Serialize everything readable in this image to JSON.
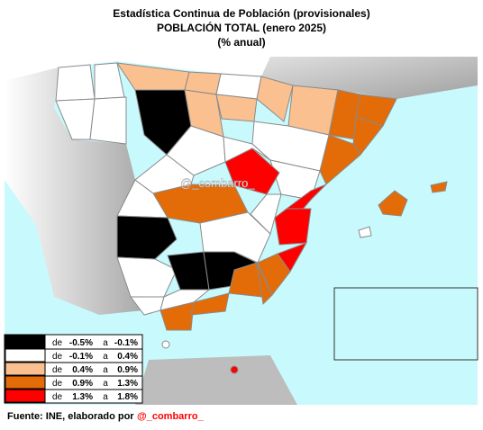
{
  "header": {
    "title": "Estadística Continua de Población  (provisionales)",
    "subtitle": "POBLACIÓN TOTAL (enero 2025)",
    "unit": "(% anual)"
  },
  "legend": {
    "rows": [
      {
        "de": "de",
        "from": "-0.5%",
        "a": "a",
        "to": "-0.1%",
        "color": "#000000"
      },
      {
        "de": "de",
        "from": "-0.1%",
        "a": "a",
        "to": "0.4%",
        "color": "#ffffff"
      },
      {
        "de": "de",
        "from": "0.4%",
        "a": "a",
        "to": "0.9%",
        "color": "#fac090"
      },
      {
        "de": "de",
        "from": "0.9%",
        "a": "a",
        "to": "1.3%",
        "color": "#e36c09"
      },
      {
        "de": "de",
        "from": "1.3%",
        "a": "a",
        "to": "1.8%",
        "color": "#ff0000"
      }
    ]
  },
  "watermark": "@_combarro_",
  "footer": {
    "source": "Fuente: INE, elaborado por",
    "author": "@_combarro_"
  }
}
